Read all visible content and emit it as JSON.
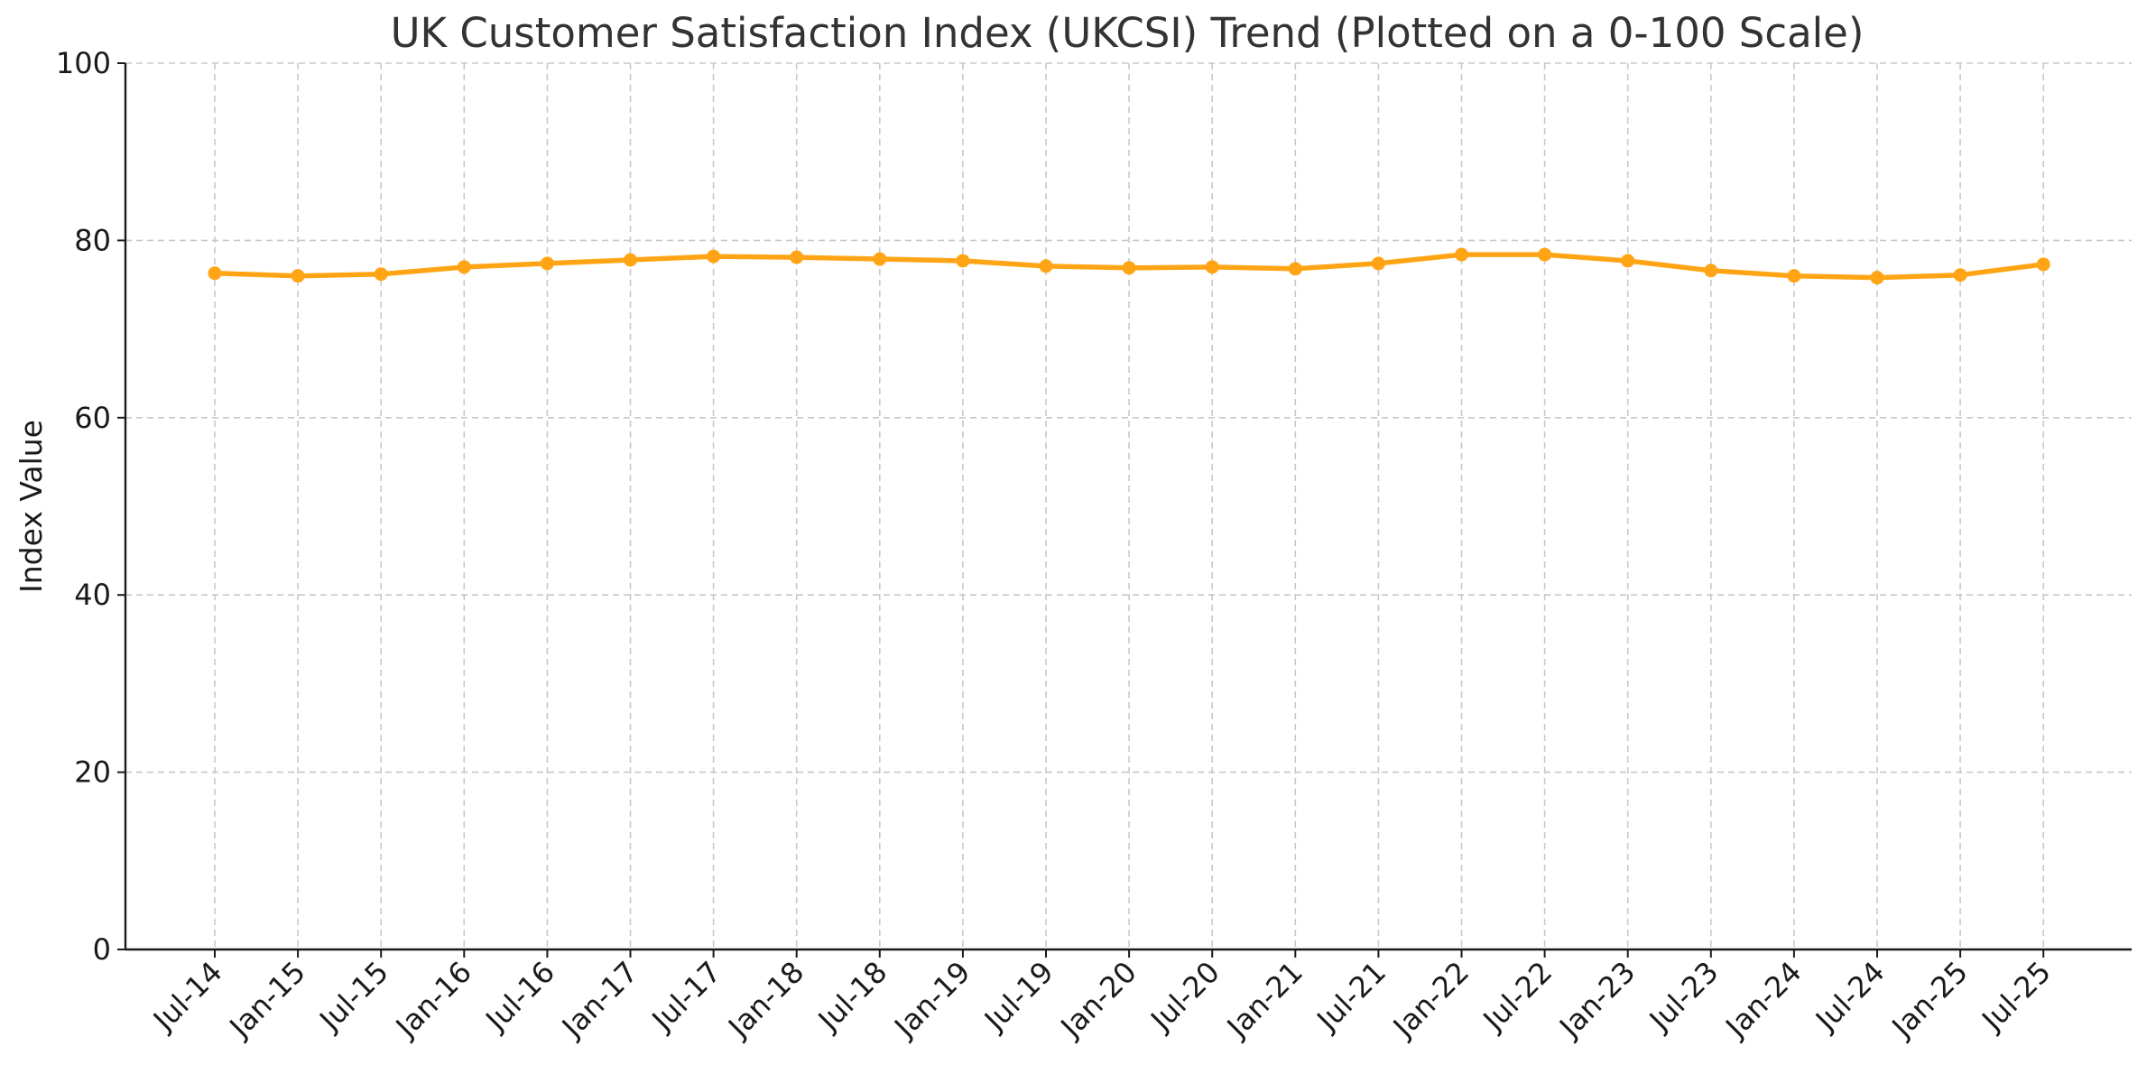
{
  "chart_data": {
    "type": "line",
    "title": "UK Customer Satisfaction Index (UKCSI) Trend (Plotted on a 0-100 Scale)",
    "xlabel": "",
    "ylabel": "Index Value",
    "ylim": [
      0,
      100
    ],
    "yticks": [
      0,
      20,
      40,
      60,
      80,
      100
    ],
    "grid": true,
    "categories": [
      "Jul-14",
      "Jan-15",
      "Jul-15",
      "Jan-16",
      "Jul-16",
      "Jan-17",
      "Jul-17",
      "Jan-18",
      "Jul-18",
      "Jan-19",
      "Jul-19",
      "Jan-20",
      "Jul-20",
      "Jan-21",
      "Jul-21",
      "Jan-22",
      "Jul-22",
      "Jan-23",
      "Jul-23",
      "Jan-24",
      "Jul-24",
      "Jan-25",
      "Jul-25"
    ],
    "series": [
      {
        "name": "UKCSI",
        "color": "#FFA515",
        "values": [
          76.3,
          76.0,
          76.2,
          77.0,
          77.4,
          77.8,
          78.2,
          78.1,
          77.9,
          77.7,
          77.1,
          76.9,
          77.0,
          76.8,
          77.4,
          78.4,
          78.4,
          77.7,
          76.6,
          76.0,
          75.8,
          76.1,
          77.3
        ]
      }
    ]
  }
}
